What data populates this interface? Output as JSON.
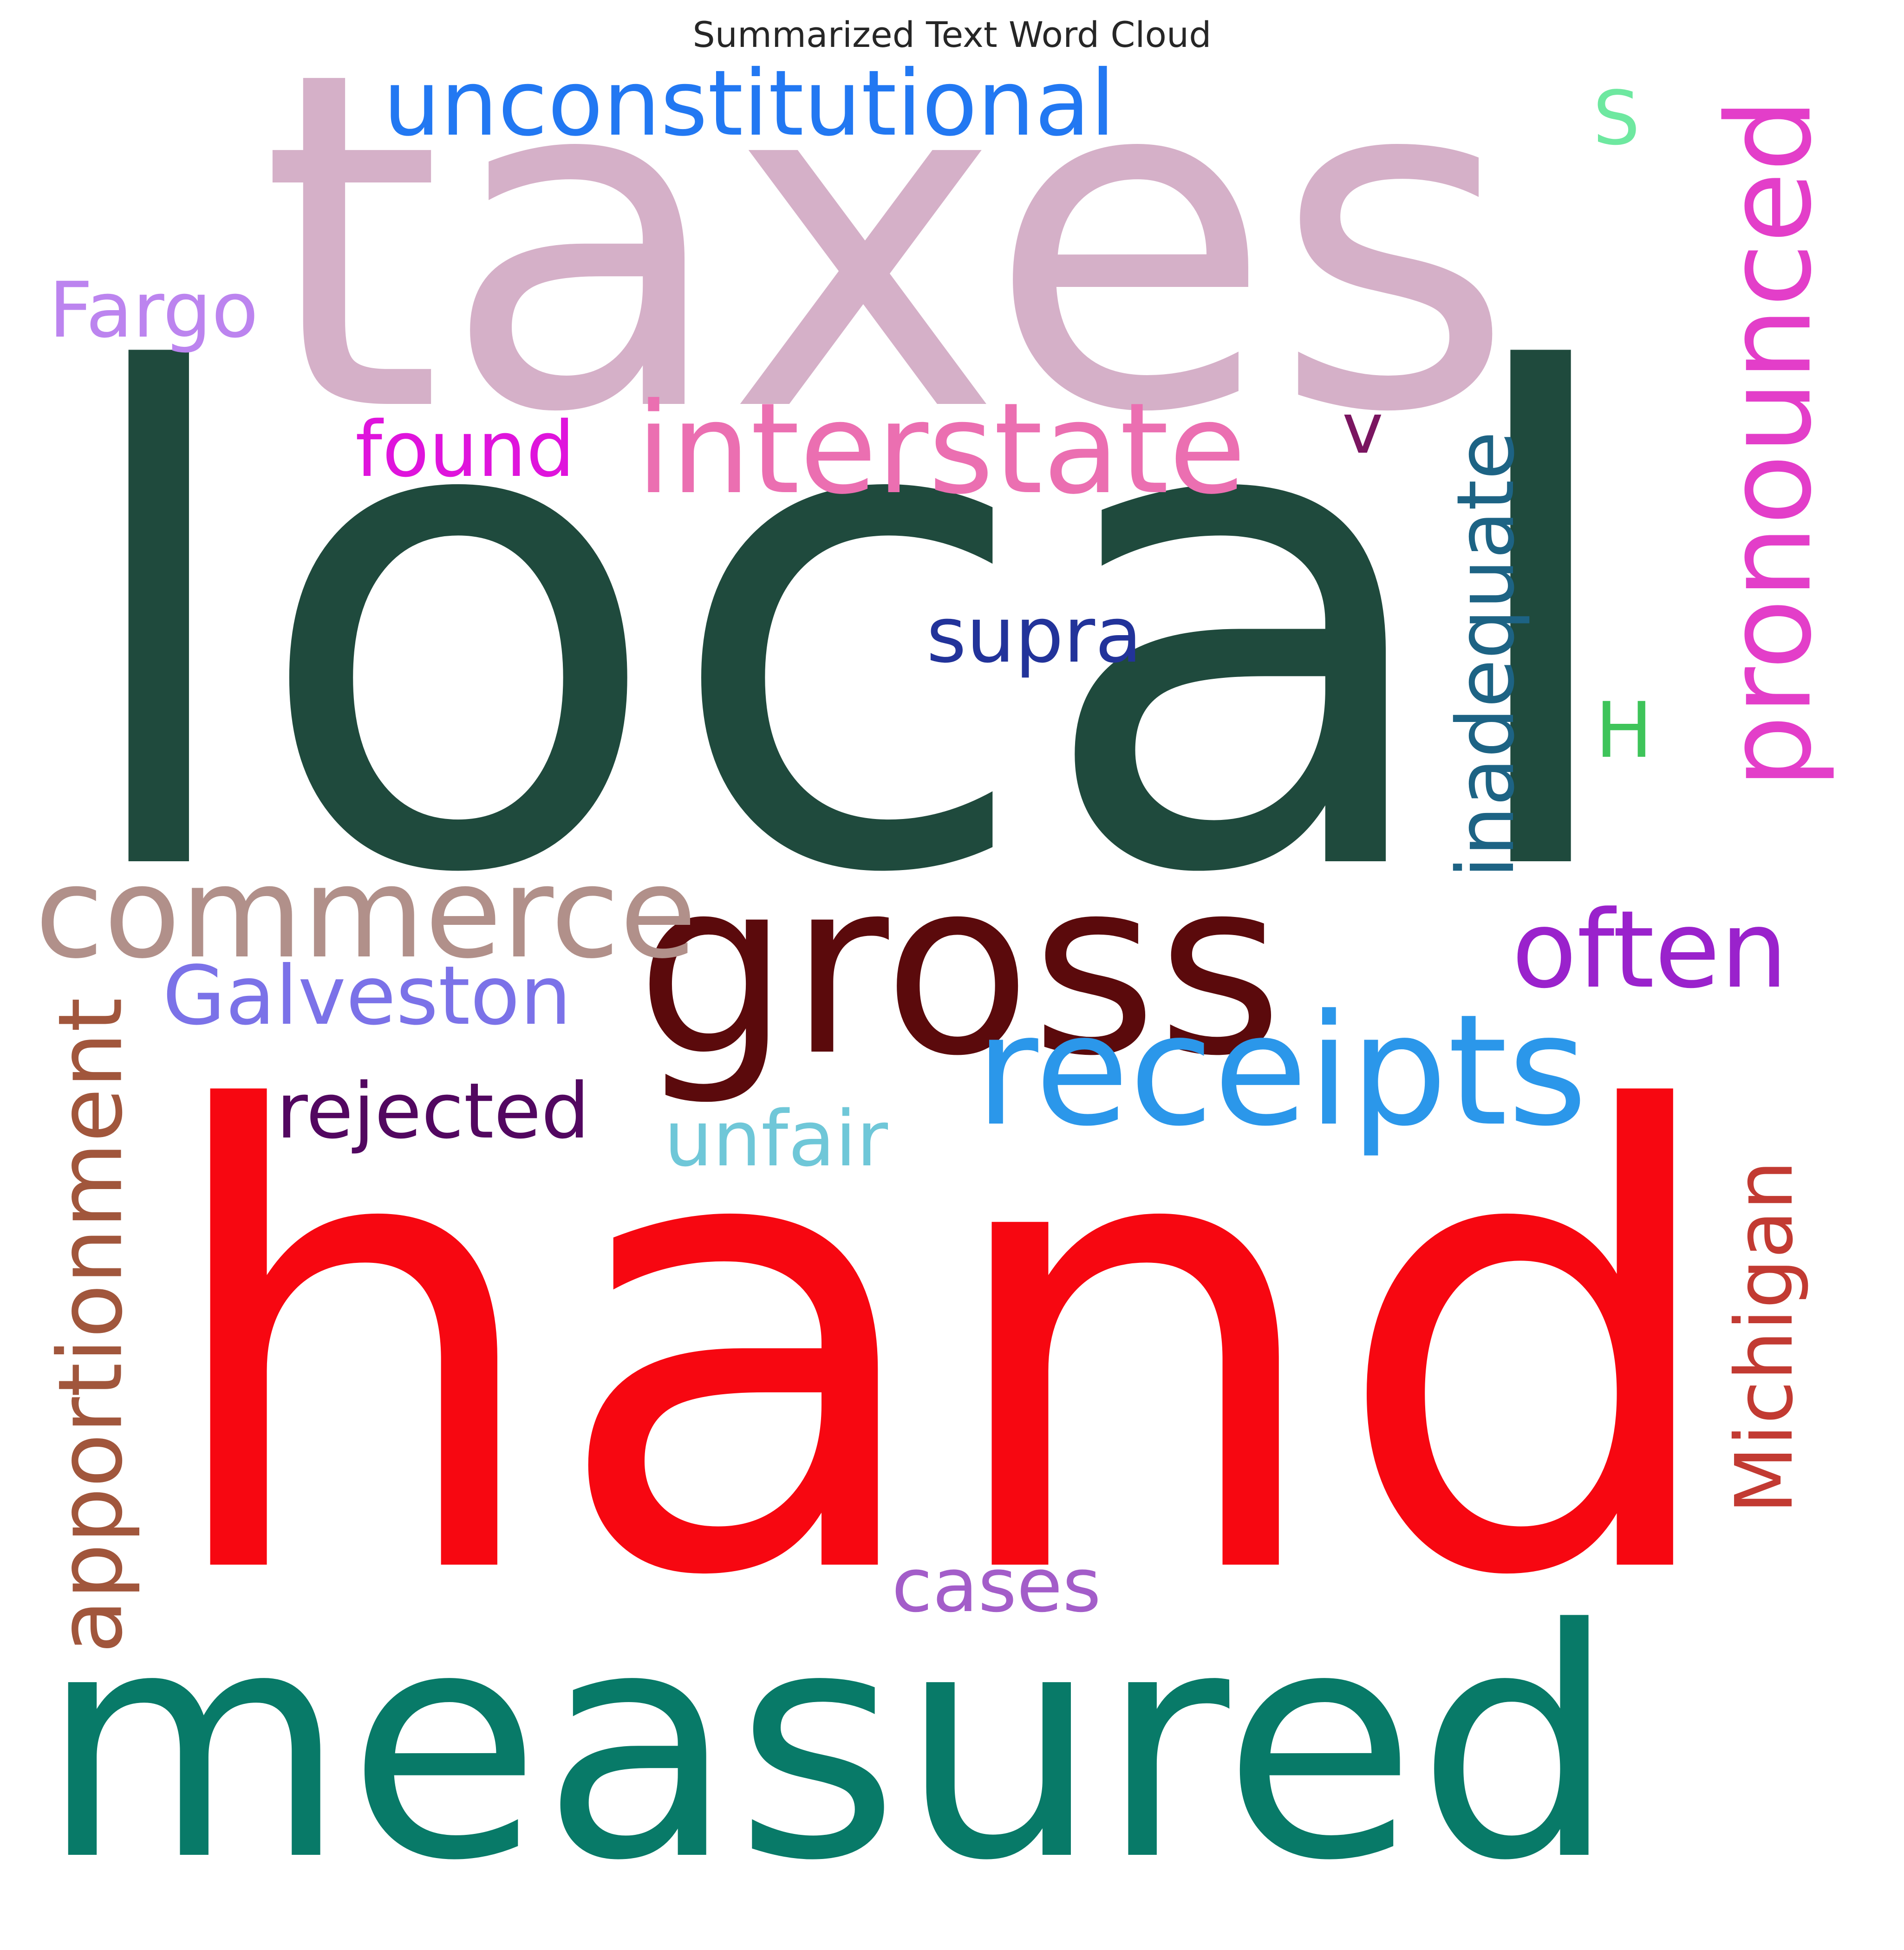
{
  "title": "Summarized Text Word Cloud",
  "words": [
    {
      "text": "local",
      "color": "#1f4a3d",
      "orientation": "horizontal"
    },
    {
      "text": "taxes",
      "color": "#d5b0c8",
      "orientation": "horizontal"
    },
    {
      "text": "hand",
      "color": "#f70711",
      "orientation": "horizontal"
    },
    {
      "text": "measured",
      "color": "#087a68",
      "orientation": "horizontal"
    },
    {
      "text": "gross",
      "color": "#5b0a0c",
      "orientation": "horizontal"
    },
    {
      "text": "receipts",
      "color": "#2b97ea",
      "orientation": "horizontal"
    },
    {
      "text": "interstate",
      "color": "#eb6fb1",
      "orientation": "horizontal"
    },
    {
      "text": "commerce",
      "color": "#b1908a",
      "orientation": "horizontal"
    },
    {
      "text": "often",
      "color": "#9a22cc",
      "orientation": "horizontal"
    },
    {
      "text": "unconstitutional",
      "color": "#2278f2",
      "orientation": "horizontal"
    },
    {
      "text": "pronounced",
      "color": "#e33ec9",
      "orientation": "vertical"
    },
    {
      "text": "apportionment",
      "color": "#a1563c",
      "orientation": "vertical"
    },
    {
      "text": "Michigan",
      "color": "#c23a32",
      "orientation": "vertical"
    },
    {
      "text": "inadequate",
      "color": "#1d6384",
      "orientation": "vertical"
    },
    {
      "text": "Galveston",
      "color": "#7b72e8",
      "orientation": "horizontal"
    },
    {
      "text": "Fargo",
      "color": "#bc84ef",
      "orientation": "horizontal"
    },
    {
      "text": "found",
      "color": "#df14dc",
      "orientation": "horizontal"
    },
    {
      "text": "rejected",
      "color": "#520760",
      "orientation": "horizontal"
    },
    {
      "text": "unfair",
      "color": "#6fc7d8",
      "orientation": "horizontal"
    },
    {
      "text": "supra",
      "color": "#22339a",
      "orientation": "horizontal"
    },
    {
      "text": "cases",
      "color": "#a35dc9",
      "orientation": "horizontal"
    },
    {
      "text": "S",
      "color": "#6ee8a0",
      "orientation": "horizontal"
    },
    {
      "text": "H",
      "color": "#3ec45a",
      "orientation": "horizontal"
    },
    {
      "text": "v",
      "color": "#7a1560",
      "orientation": "horizontal"
    }
  ]
}
